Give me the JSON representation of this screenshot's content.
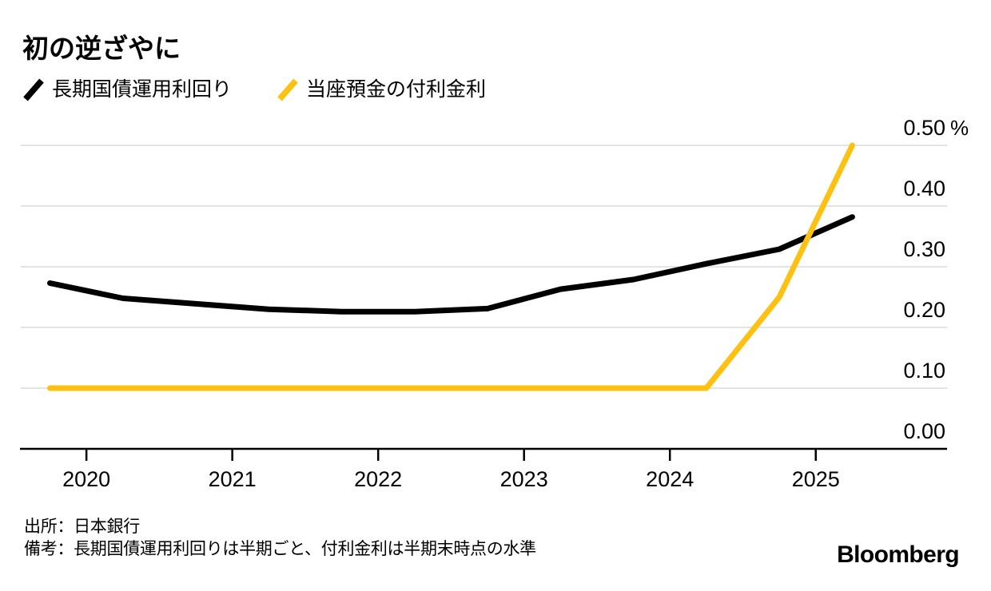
{
  "chart": {
    "title": "初の逆ざやに",
    "legend": [
      {
        "label": "長期国債運用利回り",
        "color": "#000000"
      },
      {
        "label": "当座預金の付利金利",
        "color": "#FDC112"
      }
    ],
    "source": "出所：日本銀行",
    "note": "備考：長期国債運用利回りは半期ごと、付利金利は半期末時点の水準",
    "logo": "Bloomberg"
  },
  "chart_data": {
    "type": "line",
    "x": [
      2019.75,
      2020.25,
      2020.75,
      2021.25,
      2021.75,
      2022.25,
      2022.75,
      2023.25,
      2023.75,
      2024.25,
      2024.75,
      2025.25
    ],
    "series": [
      {
        "name": "長期国債運用利回り",
        "color": "#000000",
        "values": [
          0.273,
          0.248,
          0.239,
          0.23,
          0.226,
          0.226,
          0.231,
          0.263,
          0.279,
          0.305,
          0.329,
          0.382
        ]
      },
      {
        "name": "当座預金の付利金利",
        "color": "#FDC112",
        "values": [
          0.1,
          0.1,
          0.1,
          0.1,
          0.1,
          0.1,
          0.1,
          0.1,
          0.1,
          0.1,
          0.25,
          0.5
        ]
      }
    ],
    "unit": "%",
    "xlim": [
      2019.55,
      2025.9
    ],
    "ylim": [
      0.0,
      0.5
    ],
    "grid": "horizontal",
    "gridline_color": "#E4E4E4",
    "axis_color": "#000000",
    "legend_position": "top-left",
    "y_ticks": [
      {
        "value": 0.0,
        "label": "0.00",
        "suffix": ""
      },
      {
        "value": 0.1,
        "label": "0.10",
        "suffix": ""
      },
      {
        "value": 0.2,
        "label": "0.20",
        "suffix": ""
      },
      {
        "value": 0.3,
        "label": "0.30",
        "suffix": ""
      },
      {
        "value": 0.4,
        "label": "0.40",
        "suffix": ""
      },
      {
        "value": 0.5,
        "label": "0.50",
        "suffix": "%"
      }
    ],
    "x_ticks": [
      {
        "value": 2020,
        "label": "2020"
      },
      {
        "value": 2021,
        "label": "2021"
      },
      {
        "value": 2022,
        "label": "2022"
      },
      {
        "value": 2023,
        "label": "2023"
      },
      {
        "value": 2024,
        "label": "2024"
      },
      {
        "value": 2025,
        "label": "2025"
      }
    ]
  }
}
